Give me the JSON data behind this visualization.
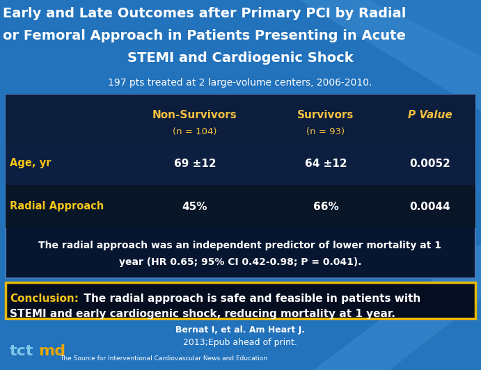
{
  "title_line1": "Early and Late Outcomes after Primary PCI by Radial",
  "title_line2": "or Femoral Approach in Patients Presenting in Acute",
  "title_line3": "STEMI and Cardiogenic Shock",
  "subtitle": "197 pts treated at 2 large-volume centers, 2006-2010.",
  "col_headers": [
    "Non-Survivors",
    "Survivors",
    "P Value"
  ],
  "col_subheaders": [
    "(n = 104)",
    "(n = 93)",
    ""
  ],
  "row_labels": [
    "Age, yr",
    "Radial Approach"
  ],
  "data": [
    [
      "69 ±12",
      "64 ±12",
      "0.0052"
    ],
    [
      "45%",
      "66%",
      "0.0044"
    ]
  ],
  "finding_line1": "The radial approach was an independent predictor of lower mortality at 1",
  "finding_line2": "year (HR 0.65; 95% CI 0.42-0.98; P = 0.041).",
  "conclusion_label": "Conclusion:",
  "conclusion_line1": "  The radial approach is safe and feasible in patients with",
  "conclusion_line2": "STEMI and early cardiogenic shock, reducing mortality at 1 year.",
  "citation_line1": "Bernat I, et al. Am Heart J.",
  "citation_line2": "2013;Epub ahead of print.",
  "tctmd_tct": "tct",
  "tctmd_md": "md",
  "tctmd_sub": "The Source for Interventional Cardiovascular News and Education",
  "bg_color": "#2272bc",
  "table_bg": "#071630",
  "header_yellow": "#f5c040",
  "white": "#ffffff",
  "yellow": "#f5c518",
  "conc_bg": "#050e20",
  "conc_border": "#e8b800",
  "tct_color": "#7ec8e8",
  "md_color": "#e8a800",
  "row1_bg": "#0d1f40",
  "row2_bg": "#091628"
}
